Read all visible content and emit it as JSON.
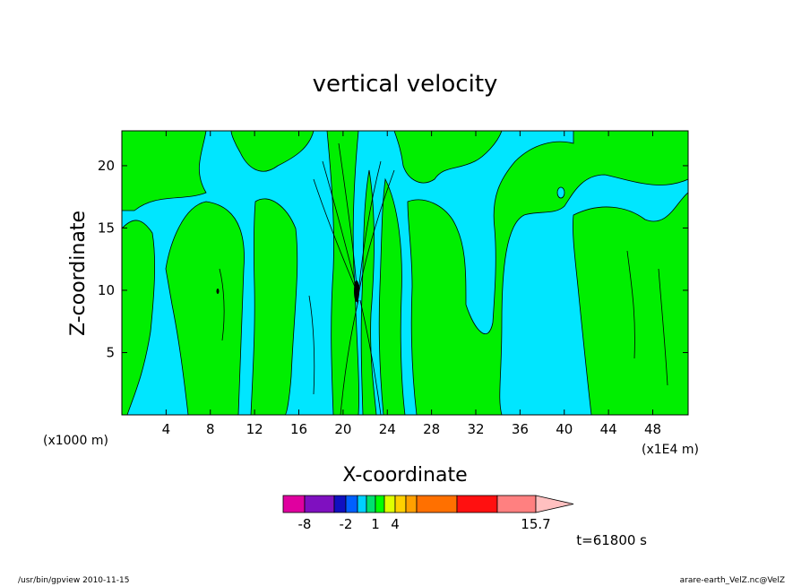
{
  "chart_data": {
    "type": "heatmap",
    "title": "vertical velocity",
    "xlabel": "X-coordinate",
    "ylabel": "Z-coordinate",
    "x_unit_left": "(x1000 m)",
    "x_unit_right": "(x1E4 m)",
    "x_ticks": [
      4,
      8,
      12,
      16,
      20,
      24,
      28,
      32,
      36,
      40,
      44,
      48
    ],
    "y_ticks": [
      5,
      10,
      15,
      20
    ],
    "xlim": [
      0,
      51.2
    ],
    "ylim": [
      0,
      22.8
    ],
    "time_label": "t=61800 s",
    "colorbar": {
      "tick_labels": [
        "-8",
        "-2",
        "1",
        "4",
        "15.7"
      ],
      "tick_values": [
        -8,
        -2,
        1,
        4,
        15.7
      ],
      "colors": [
        "#e0009f",
        "#7f10c0",
        "#1010c0",
        "#0060ff",
        "#00d0ff",
        "#00e070",
        "#00ff00",
        "#e0ff00",
        "#ffd000",
        "#ffa000",
        "#ff7000",
        "#ff1010",
        "#ff8080",
        "#ffc0c0"
      ],
      "tick_slots": [
        0,
        2,
        5,
        7,
        11
      ]
    },
    "palette": {
      "cyan": "#00e6ff",
      "green": "#00ef00",
      "contour": "#000000"
    }
  },
  "footer": {
    "left": "/usr/bin/gpview   2010-11-15",
    "right": "arare-earth_VelZ.nc@VelZ"
  }
}
